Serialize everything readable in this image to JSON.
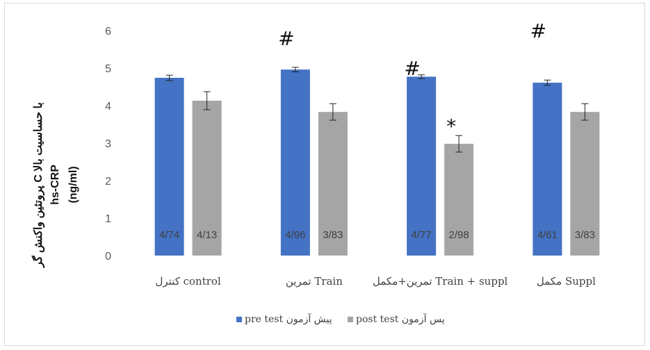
{
  "chart_data": {
    "type": "bar",
    "title": "",
    "ylabel": [
      "پروتئین واکنش گر C با حساسیت بالا",
      "hs-CRP",
      "(ng/ml)"
    ],
    "ylim": [
      0,
      6
    ],
    "yticks": [
      0,
      1,
      2,
      3,
      4,
      5,
      6
    ],
    "grid": false,
    "legend_position": "bottom",
    "categories": [
      "کنترل control",
      "تمرین Train",
      "تمرین+مکمل Train + suppl",
      "مکمل Suppl"
    ],
    "series": [
      {
        "name": "pre test پیش آزمون",
        "color": "#4472c4",
        "values": [
          4.74,
          4.96,
          4.77,
          4.61
        ],
        "errors": [
          0.07,
          0.06,
          0.05,
          0.07
        ],
        "labels": [
          "4/74",
          "4/96",
          "4/77",
          "4/61"
        ]
      },
      {
        "name": "post test پس آزمون",
        "color": "#a5a5a5",
        "values": [
          4.13,
          3.83,
          2.98,
          3.83
        ],
        "errors": [
          0.24,
          0.22,
          0.22,
          0.22
        ],
        "labels": [
          "4/13",
          "3/83",
          "2/98",
          "3/83"
        ]
      }
    ],
    "annotations": [
      {
        "text": "#",
        "category": 1,
        "value": 5.8
      },
      {
        "text": "#",
        "category": 2,
        "value": 5.0
      },
      {
        "text": "#",
        "category": 3,
        "value": 6.0
      },
      {
        "text": "*",
        "category": 2,
        "value": 3.45
      }
    ]
  }
}
